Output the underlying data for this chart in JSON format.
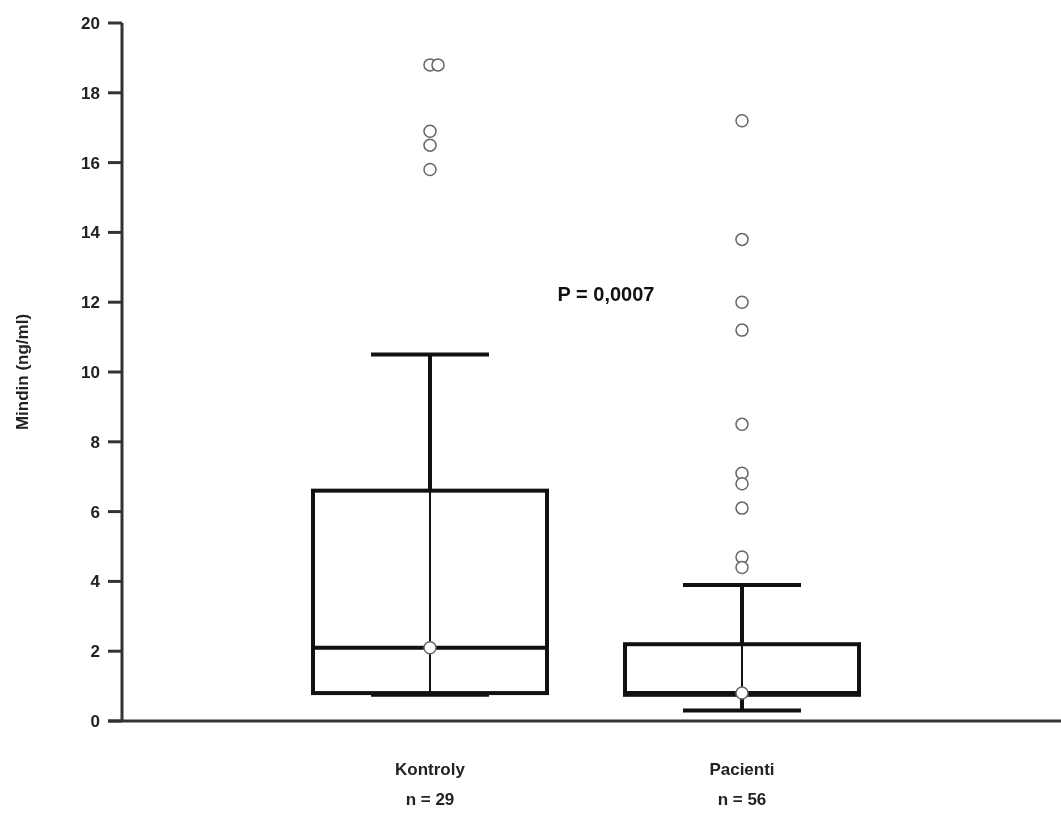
{
  "chart_data": {
    "type": "box",
    "ylabel": "Mindin (ng/ml)",
    "categories": [
      "Kontroly\nn = 29",
      "Pacienti\nn = 56"
    ],
    "boxes": [
      {
        "low": 0.75,
        "q1": 0.8,
        "median": 2.1,
        "q3": 6.6,
        "high": 10.5,
        "outliers": [
          18.8,
          18.8,
          16.9,
          16.5,
          15.8
        ]
      },
      {
        "low": 0.3,
        "q1": 0.75,
        "median": 0.8,
        "q3": 2.2,
        "high": 3.9,
        "outliers": [
          17.2,
          13.8,
          12.0,
          11.2,
          8.5,
          7.1,
          6.8,
          6.1,
          4.7,
          4.4
        ]
      }
    ],
    "ylim": [
      0,
      20
    ],
    "yticks": [
      0,
      2,
      4,
      6,
      8,
      10,
      12,
      14,
      16,
      18,
      20
    ],
    "annotations": [
      "P = 0,0007"
    ],
    "grid": false,
    "marker": "circle"
  }
}
